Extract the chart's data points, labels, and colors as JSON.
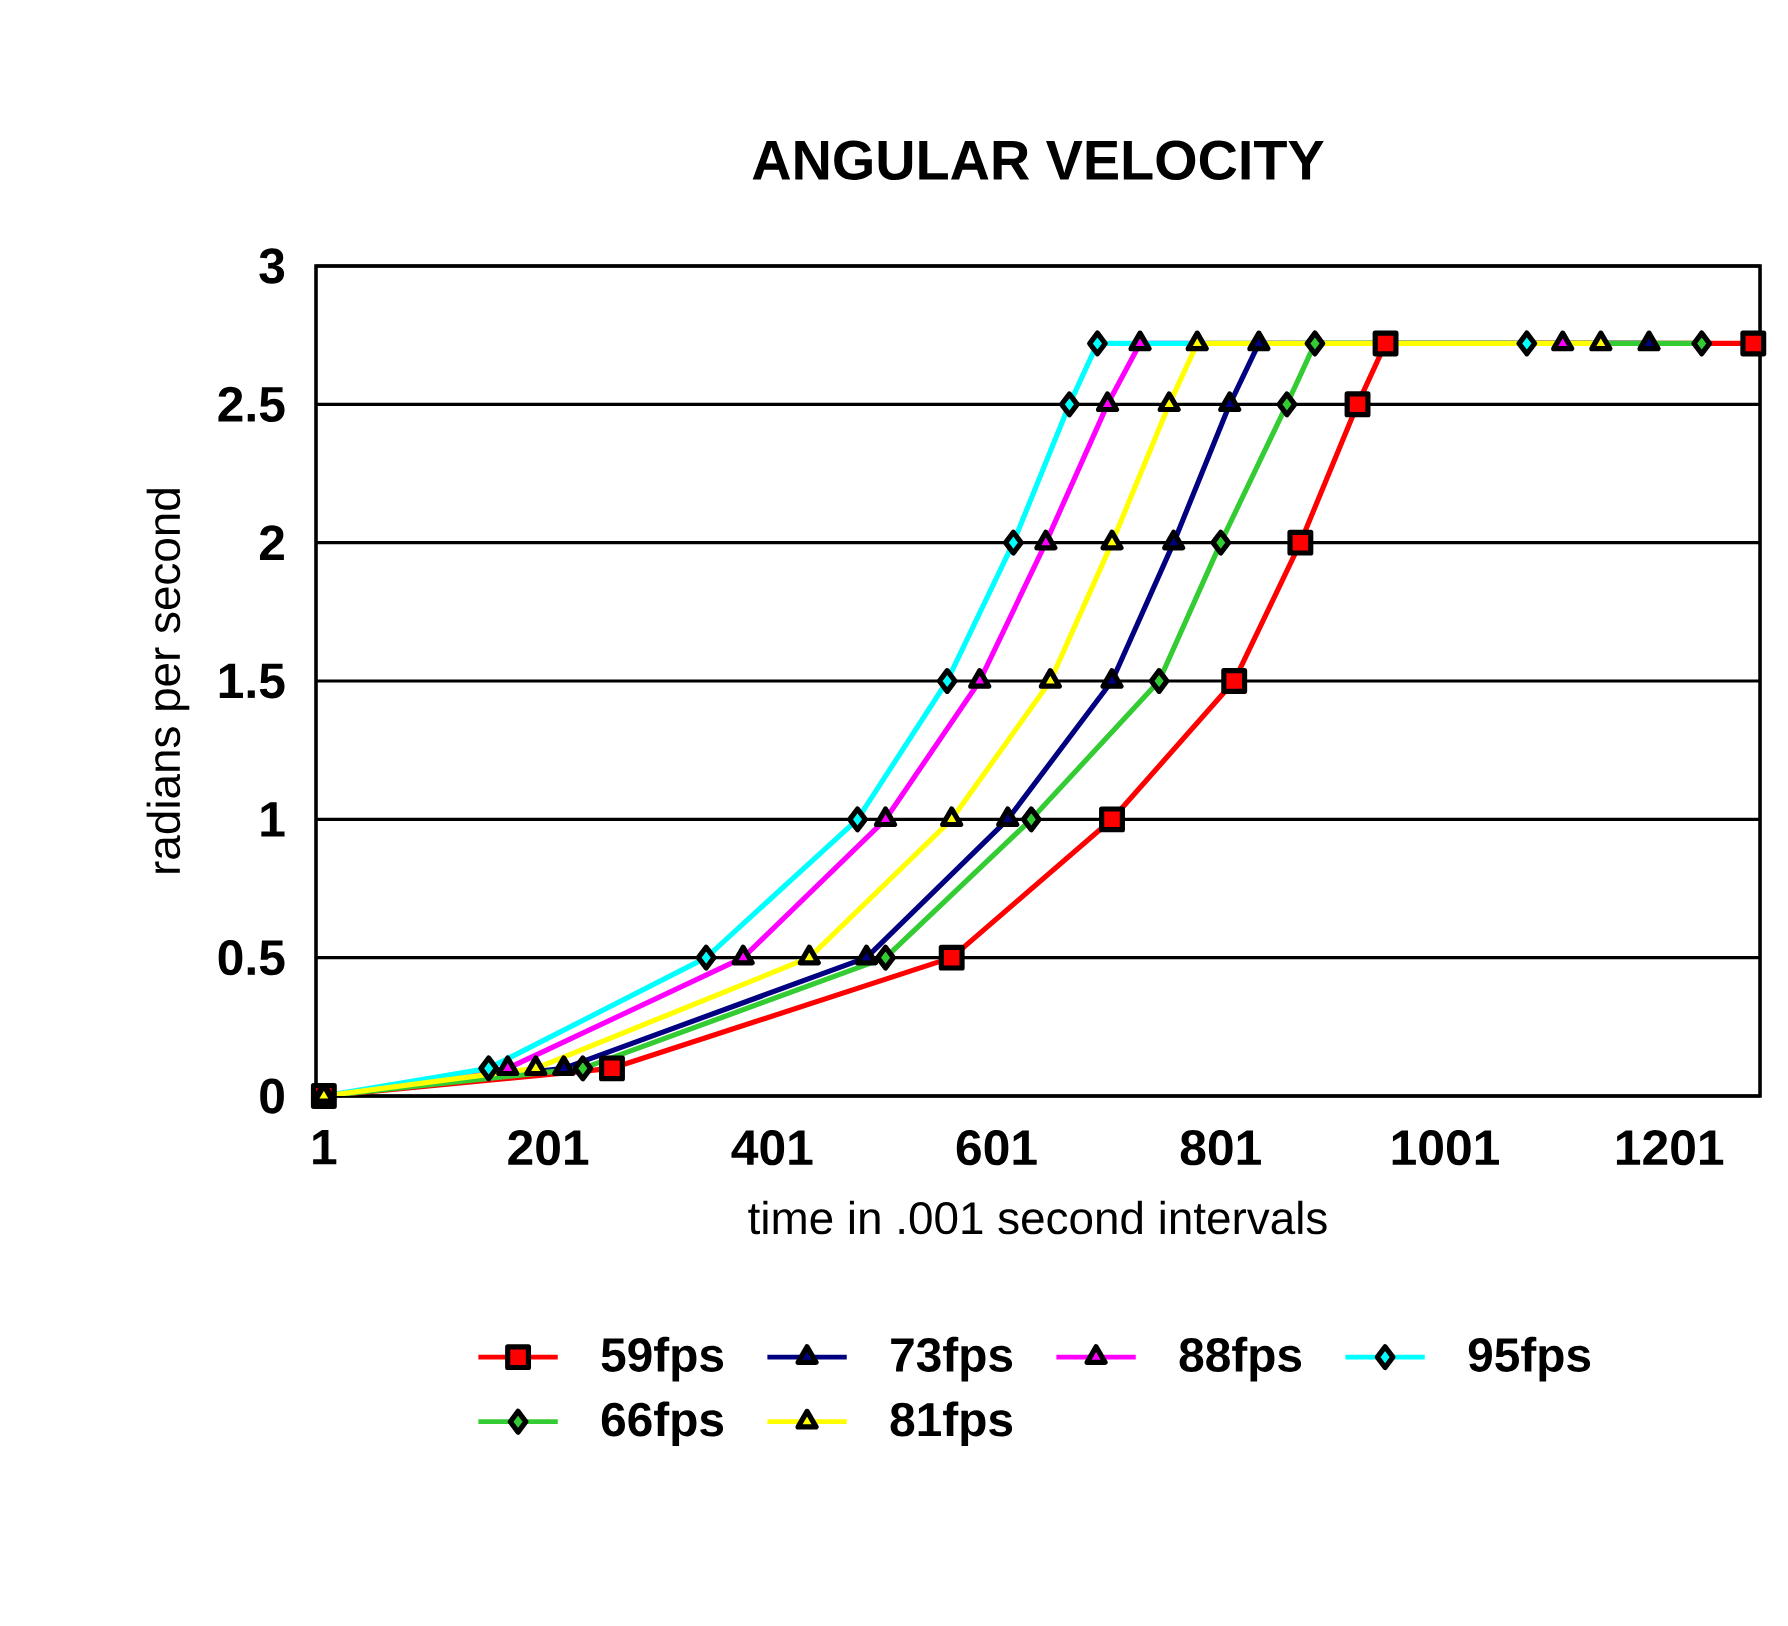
{
  "chart_data": {
    "type": "line",
    "title": "ANGULAR VELOCITY",
    "xlabel": "time in .001 second intervals",
    "ylabel": "radians per second",
    "xlim": [
      -6,
      1282
    ],
    "xticks": [
      1,
      201,
      401,
      601,
      801,
      1001,
      1201
    ],
    "ylim": [
      0,
      3
    ],
    "yticks": [
      0,
      0.5,
      1,
      1.5,
      2,
      2.5,
      3
    ],
    "grid": "y",
    "legend": "bottom",
    "line_style": "solid",
    "series": [
      {
        "name": "59fps",
        "color": "#ff0000",
        "marker": "square",
        "x": [
          1,
          258,
          561,
          704,
          813,
          872,
          923,
          948,
          1276
        ],
        "values": [
          0,
          0.1,
          0.5,
          1,
          1.5,
          2,
          2.5,
          2.72,
          2.72
        ]
      },
      {
        "name": "73fps",
        "color": "#000080",
        "marker": "triangle",
        "x": [
          1,
          215,
          485,
          611,
          704,
          759,
          809,
          835,
          1183
        ],
        "values": [
          0,
          0.1,
          0.5,
          1,
          1.5,
          2,
          2.5,
          2.72,
          2.72
        ]
      },
      {
        "name": "88fps",
        "color": "#ff00ff",
        "marker": "triangle",
        "x": [
          1,
          165,
          375,
          502,
          586,
          645,
          700,
          729,
          1106
        ],
        "values": [
          0,
          0.1,
          0.5,
          1,
          1.5,
          2,
          2.5,
          2.72,
          2.72
        ]
      },
      {
        "name": "95fps",
        "color": "#00ffff",
        "marker": "diamond",
        "x": [
          1,
          148,
          342,
          477,
          557,
          616,
          666,
          691,
          1074
        ],
        "values": [
          0,
          0.1,
          0.5,
          1,
          1.5,
          2,
          2.5,
          2.72,
          2.72
        ]
      },
      {
        "name": "66fps",
        "color": "#33cc33",
        "marker": "diamond",
        "x": [
          1,
          232,
          502,
          632,
          746,
          801,
          860,
          885,
          1230
        ],
        "values": [
          0,
          0.1,
          0.5,
          1,
          1.5,
          2,
          2.5,
          2.72,
          2.72
        ]
      },
      {
        "name": "81fps",
        "color": "#ffff00",
        "marker": "triangle",
        "x": [
          1,
          190,
          434,
          561,
          649,
          704,
          755,
          780,
          1140
        ],
        "values": [
          0,
          0.1,
          0.5,
          1,
          1.5,
          2,
          2.5,
          2.72,
          2.72
        ]
      }
    ]
  }
}
